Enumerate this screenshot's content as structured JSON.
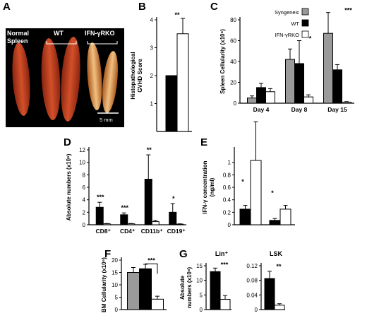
{
  "colors": {
    "syngeneic": "#9a9a9a",
    "wt": "#000000",
    "ko": "#ffffff",
    "photo_bg": "#000000",
    "spleen_dark": "#b0341c",
    "spleen_light": "#d27a3c"
  },
  "panel_a": {
    "letter": "A",
    "label_normal": "Normal\nSpleen",
    "label_wt": "WT",
    "label_ko": "IFN-γRKO",
    "scale_bar": "5 mm"
  },
  "legend": {
    "entries": [
      "Syngeneic",
      "WT",
      "IFN-γRKO"
    ]
  },
  "chart_data": [
    {
      "panel": "B",
      "type": "bar",
      "ylabel": "Histopathological\nGVHD Score",
      "ylim": [
        0,
        4
      ],
      "yticks": [
        1,
        2,
        3,
        4
      ],
      "series": [
        {
          "name": "WT",
          "values": [
            2.0
          ],
          "errors": [
            0
          ]
        },
        {
          "name": "IFN-γRKO",
          "values": [
            3.5
          ],
          "errors": [
            0.55
          ]
        }
      ],
      "significance": [
        "**"
      ]
    },
    {
      "panel": "C",
      "type": "bar",
      "ylabel": "Spleen Cellularity (x10⁶)",
      "ylim": [
        0,
        80
      ],
      "yticks": [
        0,
        20,
        40,
        60,
        80
      ],
      "categories": [
        "Day 4",
        "Day 8",
        "Day 15"
      ],
      "series": [
        {
          "name": "Syngeneic",
          "values": [
            5,
            42,
            67
          ],
          "errors": [
            2,
            10,
            20
          ]
        },
        {
          "name": "WT",
          "values": [
            15,
            38,
            32
          ],
          "errors": [
            4,
            22,
            5
          ]
        },
        {
          "name": "IFN-γRKO",
          "values": [
            11,
            6,
            1
          ],
          "errors": [
            3,
            2,
            0.5
          ]
        }
      ],
      "significance": [
        "",
        "*",
        "***"
      ]
    },
    {
      "panel": "D",
      "type": "bar",
      "ylabel": "Absolute numbers (x10⁶)",
      "ylim": [
        0,
        12
      ],
      "yticks": [
        0,
        2,
        4,
        6,
        8,
        10,
        12
      ],
      "categories": [
        "CD8⁺",
        "CD4⁺",
        "CD11b⁺",
        "CD19⁺"
      ],
      "series": [
        {
          "name": "WT",
          "values": [
            2.8,
            1.6,
            7.3,
            2.0
          ],
          "errors": [
            0.8,
            0.3,
            3.9,
            1.4
          ]
        },
        {
          "name": "IFN-γRKO",
          "values": [
            0.15,
            0.15,
            0.5,
            0.1
          ],
          "errors": [
            0.05,
            0.05,
            0.2,
            0.05
          ]
        }
      ],
      "significance": [
        "***",
        "***",
        "**",
        "*"
      ]
    },
    {
      "panel": "E",
      "type": "bar",
      "ylabel": "IFN-γ concentration\n(ng/ml)",
      "ylim": [
        0,
        1.2
      ],
      "yticks": [
        0,
        0.2,
        0.4,
        0.6,
        0.8,
        1
      ],
      "groups": 2,
      "series": [
        {
          "name": "WT",
          "values": [
            0.25,
            0.07
          ],
          "errors": [
            0.06,
            0.03
          ]
        },
        {
          "name": "IFN-γRKO",
          "values": [
            1.03,
            0.25
          ],
          "errors": [
            0.62,
            0.06
          ]
        }
      ],
      "significance": [
        "*",
        "*"
      ]
    },
    {
      "panel": "F",
      "type": "bar",
      "ylabel": "BM Cellularity (x10⁶)",
      "ylim": [
        0,
        20
      ],
      "yticks": [
        0,
        5,
        10,
        15,
        20
      ],
      "series": [
        {
          "name": "Syngeneic",
          "values": [
            15
          ],
          "errors": [
            2
          ]
        },
        {
          "name": "WT",
          "values": [
            16.5
          ],
          "errors": [
            1.8
          ]
        },
        {
          "name": "IFN-γRKO",
          "values": [
            4.2
          ],
          "errors": [
            1.2
          ]
        }
      ],
      "significance": [
        "***"
      ]
    },
    {
      "panel": "G1",
      "type": "bar",
      "title": "Lin⁺",
      "ylabel": "Absolute\nnumbers (x10⁶)",
      "ylim": [
        0,
        15
      ],
      "yticks": [
        0,
        5,
        10,
        15
      ],
      "series": [
        {
          "name": "WT",
          "values": [
            13
          ],
          "errors": [
            1.2
          ]
        },
        {
          "name": "IFN-γRKO",
          "values": [
            3.5
          ],
          "errors": [
            1.3
          ]
        }
      ],
      "significance": [
        "***"
      ]
    },
    {
      "panel": "G2",
      "type": "bar",
      "title": "LSK",
      "ylim": [
        0,
        0.12
      ],
      "yticks": [
        0,
        0.04,
        0.08,
        0.12
      ],
      "series": [
        {
          "name": "WT",
          "values": [
            0.085
          ],
          "errors": [
            0.02
          ]
        },
        {
          "name": "IFN-γRKO",
          "values": [
            0.012
          ],
          "errors": [
            0.004
          ]
        }
      ],
      "significance": [
        "**"
      ]
    }
  ]
}
